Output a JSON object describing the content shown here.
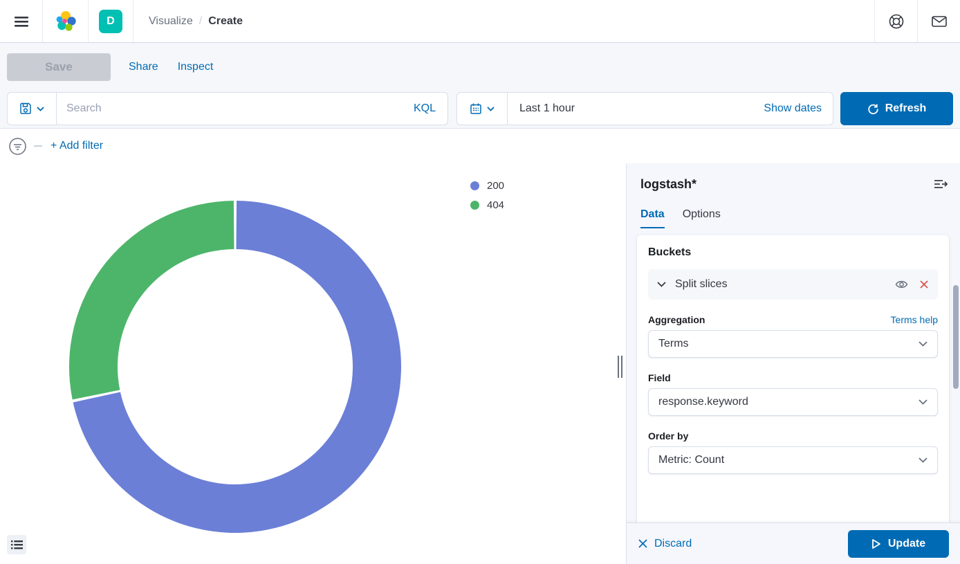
{
  "header": {
    "breadcrumb_section": "Visualize",
    "breadcrumb_separator": "/",
    "breadcrumb_current": "Create",
    "space_badge": "D"
  },
  "toolbar": {
    "save_label": "Save",
    "share_label": "Share",
    "inspect_label": "Inspect"
  },
  "query_bar": {
    "search_placeholder": "Search",
    "kql_label": "KQL",
    "time_range": "Last 1 hour",
    "show_dates_label": "Show dates",
    "refresh_label": "Refresh"
  },
  "filter_bar": {
    "add_filter_label": "+ Add filter"
  },
  "chart_data": {
    "type": "pie",
    "subtype": "donut",
    "title": "",
    "categories": [
      "200",
      "404"
    ],
    "values_percent": [
      71.7,
      28.3
    ],
    "colors": [
      "#6b7fd7",
      "#4db56a"
    ],
    "legend_position": "top-right",
    "start_angle": "12 o'clock, clockwise",
    "outer_radius_px": 240,
    "inner_radius_px": 170
  },
  "side_panel": {
    "index_pattern": "logstash*",
    "tabs": [
      {
        "label": "Data"
      },
      {
        "label": "Options"
      }
    ],
    "active_tab": "Data",
    "buckets": {
      "section_title": "Buckets",
      "bucket_row_label": "Split slices",
      "aggregation_label": "Aggregation",
      "aggregation_help": "Terms help",
      "aggregation_value": "Terms",
      "field_label": "Field",
      "field_value": "response.keyword",
      "order_by_label": "Order by",
      "order_by_value": "Metric: Count"
    },
    "footer": {
      "discard_label": "Discard",
      "update_label": "Update"
    }
  },
  "icons": {
    "hamburger": "menu-icon",
    "logo": "elastic-logo",
    "help": "help-icon",
    "mail": "mail-icon",
    "save": "floppy-icon",
    "calendar": "calendar-icon",
    "refresh": "refresh-icon",
    "filter": "filter-circle-icon",
    "chevron": "chevron-down-icon",
    "eye": "eye-icon",
    "remove": "red-x-icon",
    "collapse": "collapse-panel-icon",
    "legend_toggle": "list-icon",
    "discard": "x-icon",
    "update": "play-icon"
  },
  "colors": {
    "primary": "#006BB4",
    "badge_teal": "#00bfb3",
    "panel_bg": "#f5f7fc",
    "border": "#d3dae6",
    "danger": "#d9544f",
    "slice_blue": "#6b7fd7",
    "slice_green": "#4db56a",
    "text": "#343741",
    "subdued_text": "#69707d"
  }
}
